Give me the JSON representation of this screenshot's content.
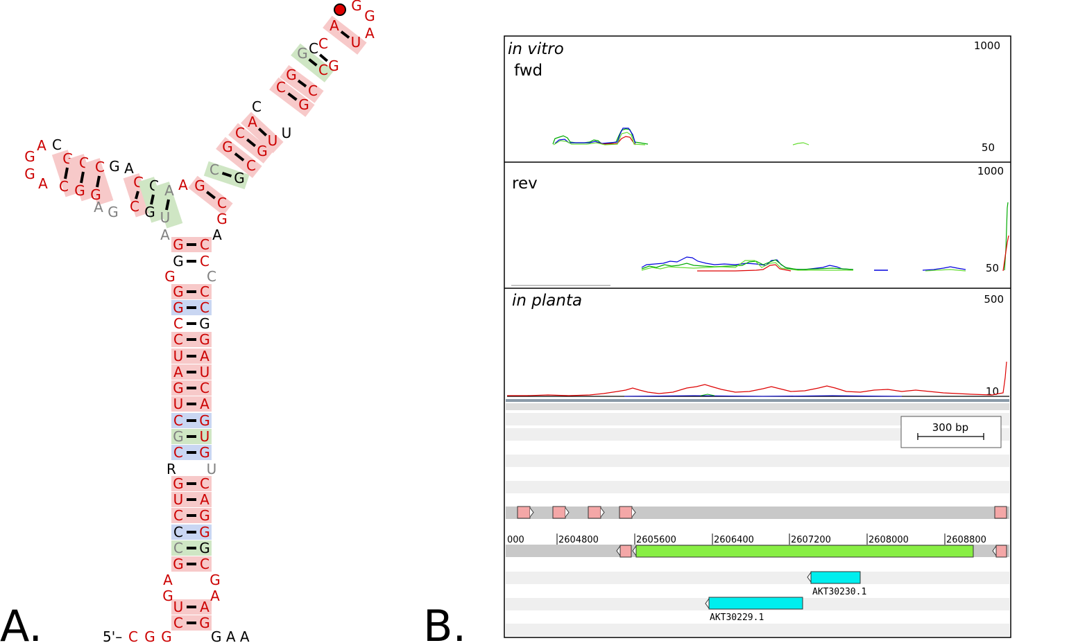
{
  "panel_labels": [
    "A.",
    "B."
  ],
  "colors": {
    "conserved_nt": "#cc0000",
    "variable_nt": "#808080",
    "plain_nt": "#000000",
    "pair_pink": "#f7c9c9",
    "pair_green": "#cfe6c4",
    "pair_blue": "#c9d6f2"
  },
  "structure": {
    "five_prime": "5'–",
    "three_prime_tail": "G A A",
    "start_marker": "red-dot"
  },
  "browser": {
    "tracks": [
      {
        "title": "in vitro",
        "subtitle": "fwd",
        "max": "1000",
        "min": "50",
        "italic": true
      },
      {
        "title": "rev",
        "subtitle": "",
        "max": "1000",
        "min": "50",
        "italic": false
      },
      {
        "title": "in planta",
        "subtitle": "",
        "max": "500",
        "min": "10",
        "italic": true
      }
    ],
    "scale_bar": "300 bp",
    "coords": [
      "000",
      "2604800",
      "2605600",
      "2606400",
      "2607200",
      "2608000",
      "2608800"
    ],
    "genes": [
      "AKT30230.1",
      "AKT30229.1"
    ]
  }
}
